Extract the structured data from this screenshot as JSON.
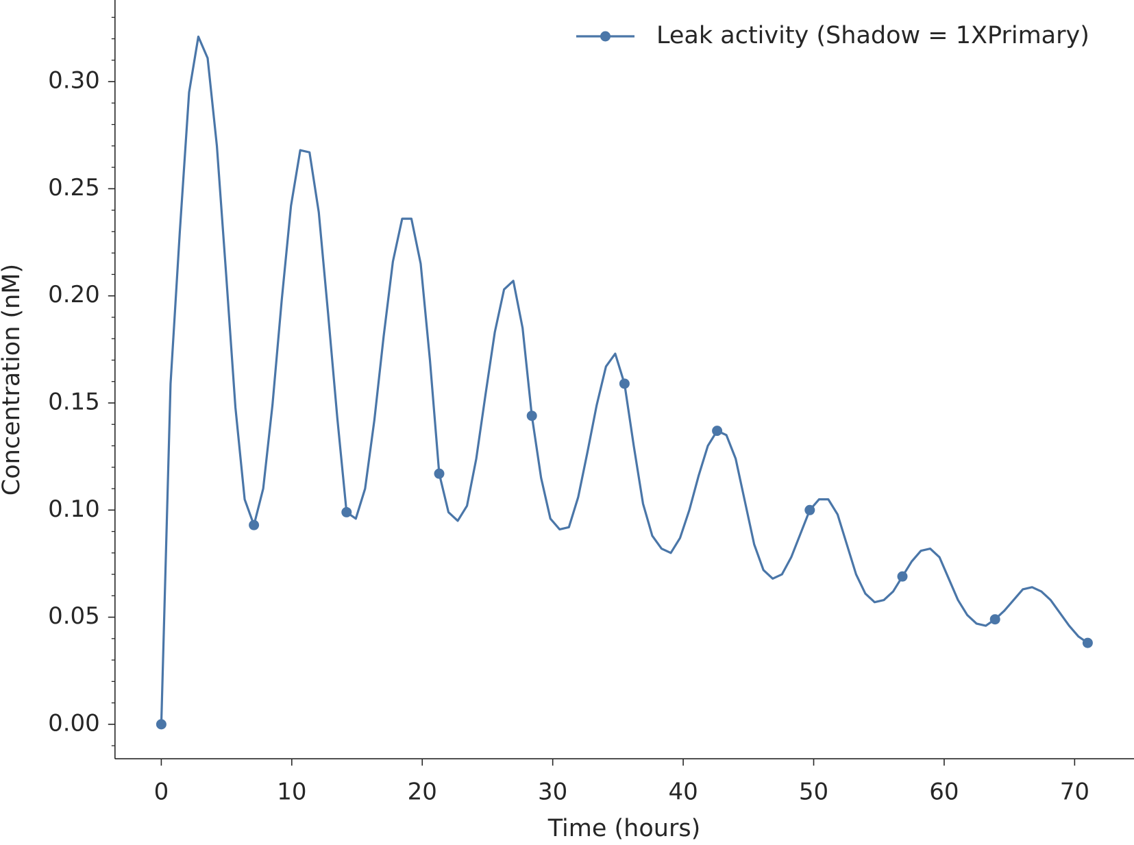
{
  "chart_data": {
    "type": "line",
    "xlabel": "Time (hours)",
    "ylabel": "Concentration (nM)",
    "x": [
      0,
      0.71,
      1.42,
      2.13,
      2.84,
      3.55,
      4.26,
      4.97,
      5.68,
      6.39,
      7.1,
      7.81,
      8.52,
      9.23,
      9.94,
      10.65,
      11.36,
      12.07,
      12.78,
      13.49,
      14.2,
      14.91,
      15.62,
      16.33,
      17.04,
      17.75,
      18.46,
      19.17,
      19.88,
      20.59,
      21.3,
      22.01,
      22.72,
      23.43,
      24.14,
      24.85,
      25.56,
      26.27,
      26.98,
      27.69,
      28.4,
      29.11,
      29.82,
      30.53,
      31.24,
      31.95,
      32.66,
      33.37,
      34.08,
      34.79,
      35.5,
      36.21,
      36.92,
      37.63,
      38.34,
      39.05,
      39.76,
      40.47,
      41.18,
      41.89,
      42.6,
      43.31,
      44.02,
      44.73,
      45.44,
      46.15,
      46.86,
      47.57,
      48.28,
      48.99,
      49.7,
      50.41,
      51.12,
      51.83,
      52.54,
      53.25,
      53.96,
      54.67,
      55.38,
      56.09,
      56.8,
      57.51,
      58.22,
      58.93,
      59.64,
      60.35,
      61.06,
      61.77,
      62.48,
      63.19,
      63.9,
      64.61,
      65.32,
      66.03,
      66.74,
      67.45,
      68.16,
      68.87,
      69.58,
      70.29,
      71
    ],
    "series": [
      {
        "name": "Leak activity (Shadow = 1XPrimary)",
        "color": "#4a76a8",
        "markevery": 10,
        "values": [
          0,
          0.159,
          0.23,
          0.295,
          0.321,
          0.311,
          0.27,
          0.21,
          0.148,
          0.105,
          0.093,
          0.11,
          0.149,
          0.198,
          0.242,
          0.268,
          0.267,
          0.239,
          0.192,
          0.143,
          0.099,
          0.096,
          0.11,
          0.142,
          0.181,
          0.216,
          0.236,
          0.236,
          0.215,
          0.17,
          0.117,
          0.099,
          0.095,
          0.102,
          0.124,
          0.154,
          0.183,
          0.203,
          0.207,
          0.185,
          0.144,
          0.115,
          0.096,
          0.091,
          0.092,
          0.106,
          0.127,
          0.149,
          0.167,
          0.173,
          0.159,
          0.13,
          0.103,
          0.088,
          0.082,
          0.08,
          0.087,
          0.1,
          0.116,
          0.13,
          0.137,
          0.135,
          0.124,
          0.104,
          0.084,
          0.072,
          0.068,
          0.07,
          0.078,
          0.089,
          0.1,
          0.105,
          0.105,
          0.098,
          0.084,
          0.07,
          0.061,
          0.057,
          0.058,
          0.062,
          0.069,
          0.076,
          0.081,
          0.082,
          0.078,
          0.068,
          0.058,
          0.051,
          0.047,
          0.046,
          0.049,
          0.053,
          0.058,
          0.063,
          0.064,
          0.062,
          0.058,
          0.052,
          0.046,
          0.041,
          0.038
        ]
      }
    ],
    "xlim": [
      -3.55,
      74.55
    ],
    "xticks": [
      0,
      10,
      20,
      30,
      40,
      50,
      60,
      70
    ],
    "ylim": [
      -0.0161,
      0.3381
    ],
    "yticks": [
      {
        "value": 0,
        "label": "0.00"
      },
      {
        "value": 0.05,
        "label": "0.05"
      },
      {
        "value": 0.1,
        "label": "0.10"
      },
      {
        "value": 0.15,
        "label": "0.15"
      },
      {
        "value": 0.2,
        "label": "0.20"
      },
      {
        "value": 0.25,
        "label": "0.25"
      },
      {
        "value": 0.3,
        "label": "0.30"
      }
    ],
    "yminorticks": [
      -0.01,
      0.01,
      0.02,
      0.03,
      0.04,
      0.06,
      0.07,
      0.08,
      0.09,
      0.11,
      0.12,
      0.13,
      0.14,
      0.16,
      0.17,
      0.18,
      0.19,
      0.21,
      0.22,
      0.23,
      0.24,
      0.26,
      0.27,
      0.28,
      0.29,
      0.31,
      0.32,
      0.33
    ],
    "legend": "upper right"
  }
}
